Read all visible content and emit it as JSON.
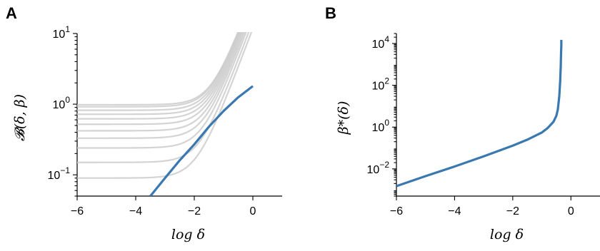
{
  "chart_data": [
    {
      "panel_letter": "A",
      "type": "line",
      "xlabel": "log δ",
      "ylabel": "𝓑(δ, β)",
      "xlim": [
        -6,
        1
      ],
      "ylim": [
        0.05,
        10
      ],
      "yscale": "log",
      "grid": false,
      "x_ticks": [
        -6,
        -4,
        -2,
        0
      ],
      "x_tick_labels": [
        "−6",
        "−4",
        "−2",
        "0"
      ],
      "y_ticks": [
        0.1,
        1,
        10
      ],
      "y_tick_labels": [
        {
          "base": "10",
          "exp": "−1"
        },
        {
          "base": "10",
          "exp": "0"
        },
        {
          "base": "10",
          "exp": "1"
        }
      ],
      "background_curves": {
        "color": "#cccccc",
        "plateau_values": [
          0.09,
          0.15,
          0.24,
          0.33,
          0.42,
          0.52,
          0.62,
          0.72,
          0.82,
          0.92,
          0.98
        ]
      },
      "highlight_curve": {
        "color": "#3a78b0",
        "x": [
          -3.5,
          -3,
          -2.5,
          -2,
          -1.5,
          -1,
          -0.5,
          0
        ],
        "y": [
          0.05,
          0.09,
          0.16,
          0.27,
          0.48,
          0.8,
          1.25,
          1.8
        ]
      }
    },
    {
      "panel_letter": "B",
      "type": "line",
      "xlabel": "log δ",
      "ylabel": "β*(δ)",
      "xlim": [
        -6,
        1
      ],
      "ylim": [
        0.0005,
        30000
      ],
      "yscale": "log",
      "grid": false,
      "x_ticks": [
        -6,
        -4,
        -2,
        0
      ],
      "x_tick_labels": [
        "−6",
        "−4",
        "−2",
        "0"
      ],
      "y_ticks": [
        0.01,
        1,
        100,
        10000
      ],
      "y_tick_labels": [
        {
          "base": "10",
          "exp": "−2"
        },
        {
          "base": "10",
          "exp": "0"
        },
        {
          "base": "10",
          "exp": "2"
        },
        {
          "base": "10",
          "exp": "4"
        }
      ],
      "series": [
        {
          "color": "#3a78b0",
          "x": [
            -6,
            -5,
            -4,
            -3,
            -2,
            -1.5,
            -1,
            -0.8,
            -0.6,
            -0.5,
            -0.45,
            -0.4,
            -0.37,
            -0.35,
            -0.34,
            -0.33,
            -0.33
          ],
          "y": [
            0.0015,
            0.0045,
            0.013,
            0.04,
            0.13,
            0.25,
            0.55,
            0.9,
            1.8,
            3.5,
            7,
            30,
            150,
            800,
            3000,
            8000,
            15000
          ]
        }
      ]
    }
  ]
}
